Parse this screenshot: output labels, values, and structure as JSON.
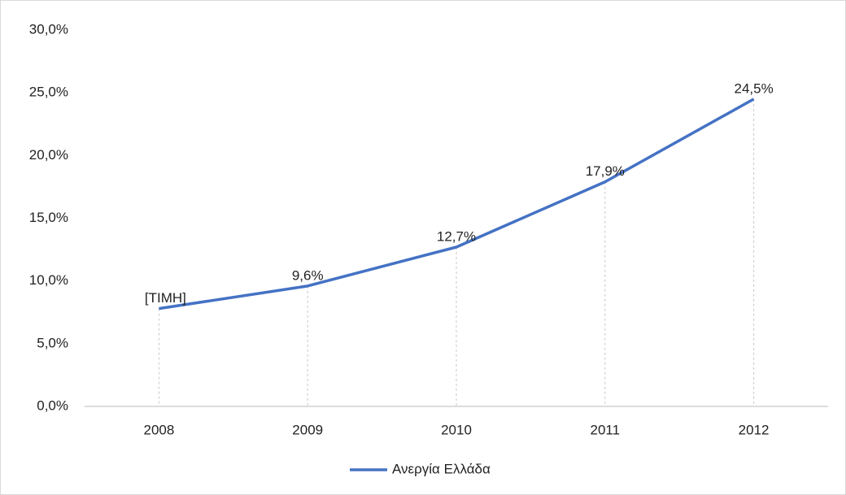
{
  "chart_data": {
    "type": "line",
    "categories": [
      "2008",
      "2009",
      "2010",
      "2011",
      "2012"
    ],
    "series": [
      {
        "name": "Ανεργία Ελλάδα",
        "color": "#4472c4",
        "values": [
          7.8,
          9.6,
          12.7,
          17.9,
          24.5
        ],
        "value_labels": [
          "[ΤΙΜΗ]",
          "9,6%",
          "12,7%",
          "17,9%",
          "24,5%"
        ]
      }
    ],
    "ylim": [
      0,
      30
    ],
    "yticks": [
      {
        "value": 0,
        "label": "0,0%"
      },
      {
        "value": 5,
        "label": "5,0%"
      },
      {
        "value": 10,
        "label": "10,0%"
      },
      {
        "value": 15,
        "label": "15,0%"
      },
      {
        "value": 20,
        "label": "20,0%"
      },
      {
        "value": 25,
        "label": "25,0%"
      },
      {
        "value": 30,
        "label": "30,0%"
      }
    ],
    "grid": false,
    "drop_lines": true,
    "legend": "bottom"
  }
}
